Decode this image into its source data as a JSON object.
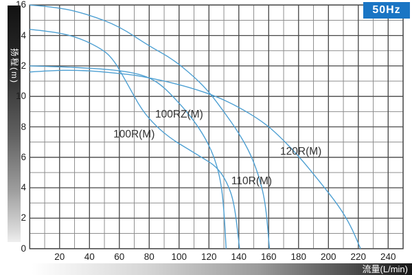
{
  "badge": {
    "label": "50Hz",
    "color": "#1a75c4"
  },
  "chart_data": {
    "type": "line",
    "title": "",
    "xlabel": "流量(L/min)",
    "ylabel": "扬程(m)",
    "xlim": [
      0,
      250
    ],
    "ylim": [
      0,
      16
    ],
    "x_tick_labels": [
      20,
      40,
      60,
      80,
      100,
      120,
      140,
      160,
      180,
      200,
      220,
      240
    ],
    "y_tick_labels": [
      0,
      2,
      4,
      6,
      8,
      10,
      12,
      14,
      16
    ],
    "x_minor_step": 10,
    "y_minor_step": 1,
    "grid": "on",
    "legend_position": "labels-on-curves",
    "curve_color": "#4d9fd2",
    "grid_minor_color": "#8d8d8d",
    "grid_major_color": "#4b4b4b",
    "series": [
      {
        "name": "100R(M)",
        "label_anchor": {
          "flow": 56,
          "head": 7.3
        },
        "points": [
          [
            0,
            14.4
          ],
          [
            15,
            14.25
          ],
          [
            30,
            13.95
          ],
          [
            45,
            13.3
          ],
          [
            55,
            12.6
          ],
          [
            65,
            10.9
          ],
          [
            75,
            9.1
          ],
          [
            85,
            8.0
          ],
          [
            95,
            7.2
          ],
          [
            105,
            6.6
          ],
          [
            115,
            6.0
          ],
          [
            125,
            5.4
          ],
          [
            132,
            4.4
          ],
          [
            137,
            3.0
          ],
          [
            140.5,
            0
          ]
        ]
      },
      {
        "name": "100RZ(M)",
        "label_anchor": {
          "flow": 84,
          "head": 8.61
        },
        "points": [
          [
            0,
            12.0
          ],
          [
            20,
            11.95
          ],
          [
            40,
            11.85
          ],
          [
            55,
            11.75
          ],
          [
            70,
            11.55
          ],
          [
            81,
            11.2
          ],
          [
            90,
            10.6
          ],
          [
            102,
            9.35
          ],
          [
            110,
            8.4
          ],
          [
            118,
            7.2
          ],
          [
            124,
            5.9
          ],
          [
            128,
            4.4
          ],
          [
            130,
            2.6
          ],
          [
            131.5,
            0
          ]
        ]
      },
      {
        "name": "110R(M)",
        "label_anchor": {
          "flow": 135,
          "head": 4.23
        },
        "points": [
          [
            0,
            16.0
          ],
          [
            20,
            15.85
          ],
          [
            40,
            15.35
          ],
          [
            60,
            14.6
          ],
          [
            80,
            13.3
          ],
          [
            95,
            12.5
          ],
          [
            110,
            11.3
          ],
          [
            120,
            10.3
          ],
          [
            130,
            9.0
          ],
          [
            140,
            7.6
          ],
          [
            148,
            6.2
          ],
          [
            154,
            4.6
          ],
          [
            158,
            2.9
          ],
          [
            160.5,
            0
          ]
        ]
      },
      {
        "name": "120R(M)",
        "label_anchor": {
          "flow": 167.7,
          "head": 6.17
        },
        "points": [
          [
            0,
            11.6
          ],
          [
            15,
            11.7
          ],
          [
            30,
            11.72
          ],
          [
            45,
            11.65
          ],
          [
            60,
            11.5
          ],
          [
            70,
            11.4
          ],
          [
            81,
            11.2
          ],
          [
            95,
            10.9
          ],
          [
            110,
            10.5
          ],
          [
            125,
            10.0
          ],
          [
            140,
            9.3
          ],
          [
            155,
            8.4
          ],
          [
            165,
            7.6
          ],
          [
            180,
            6.1
          ],
          [
            195,
            4.3
          ],
          [
            207,
            2.8
          ],
          [
            215,
            1.5
          ],
          [
            221.5,
            0
          ]
        ]
      }
    ]
  }
}
